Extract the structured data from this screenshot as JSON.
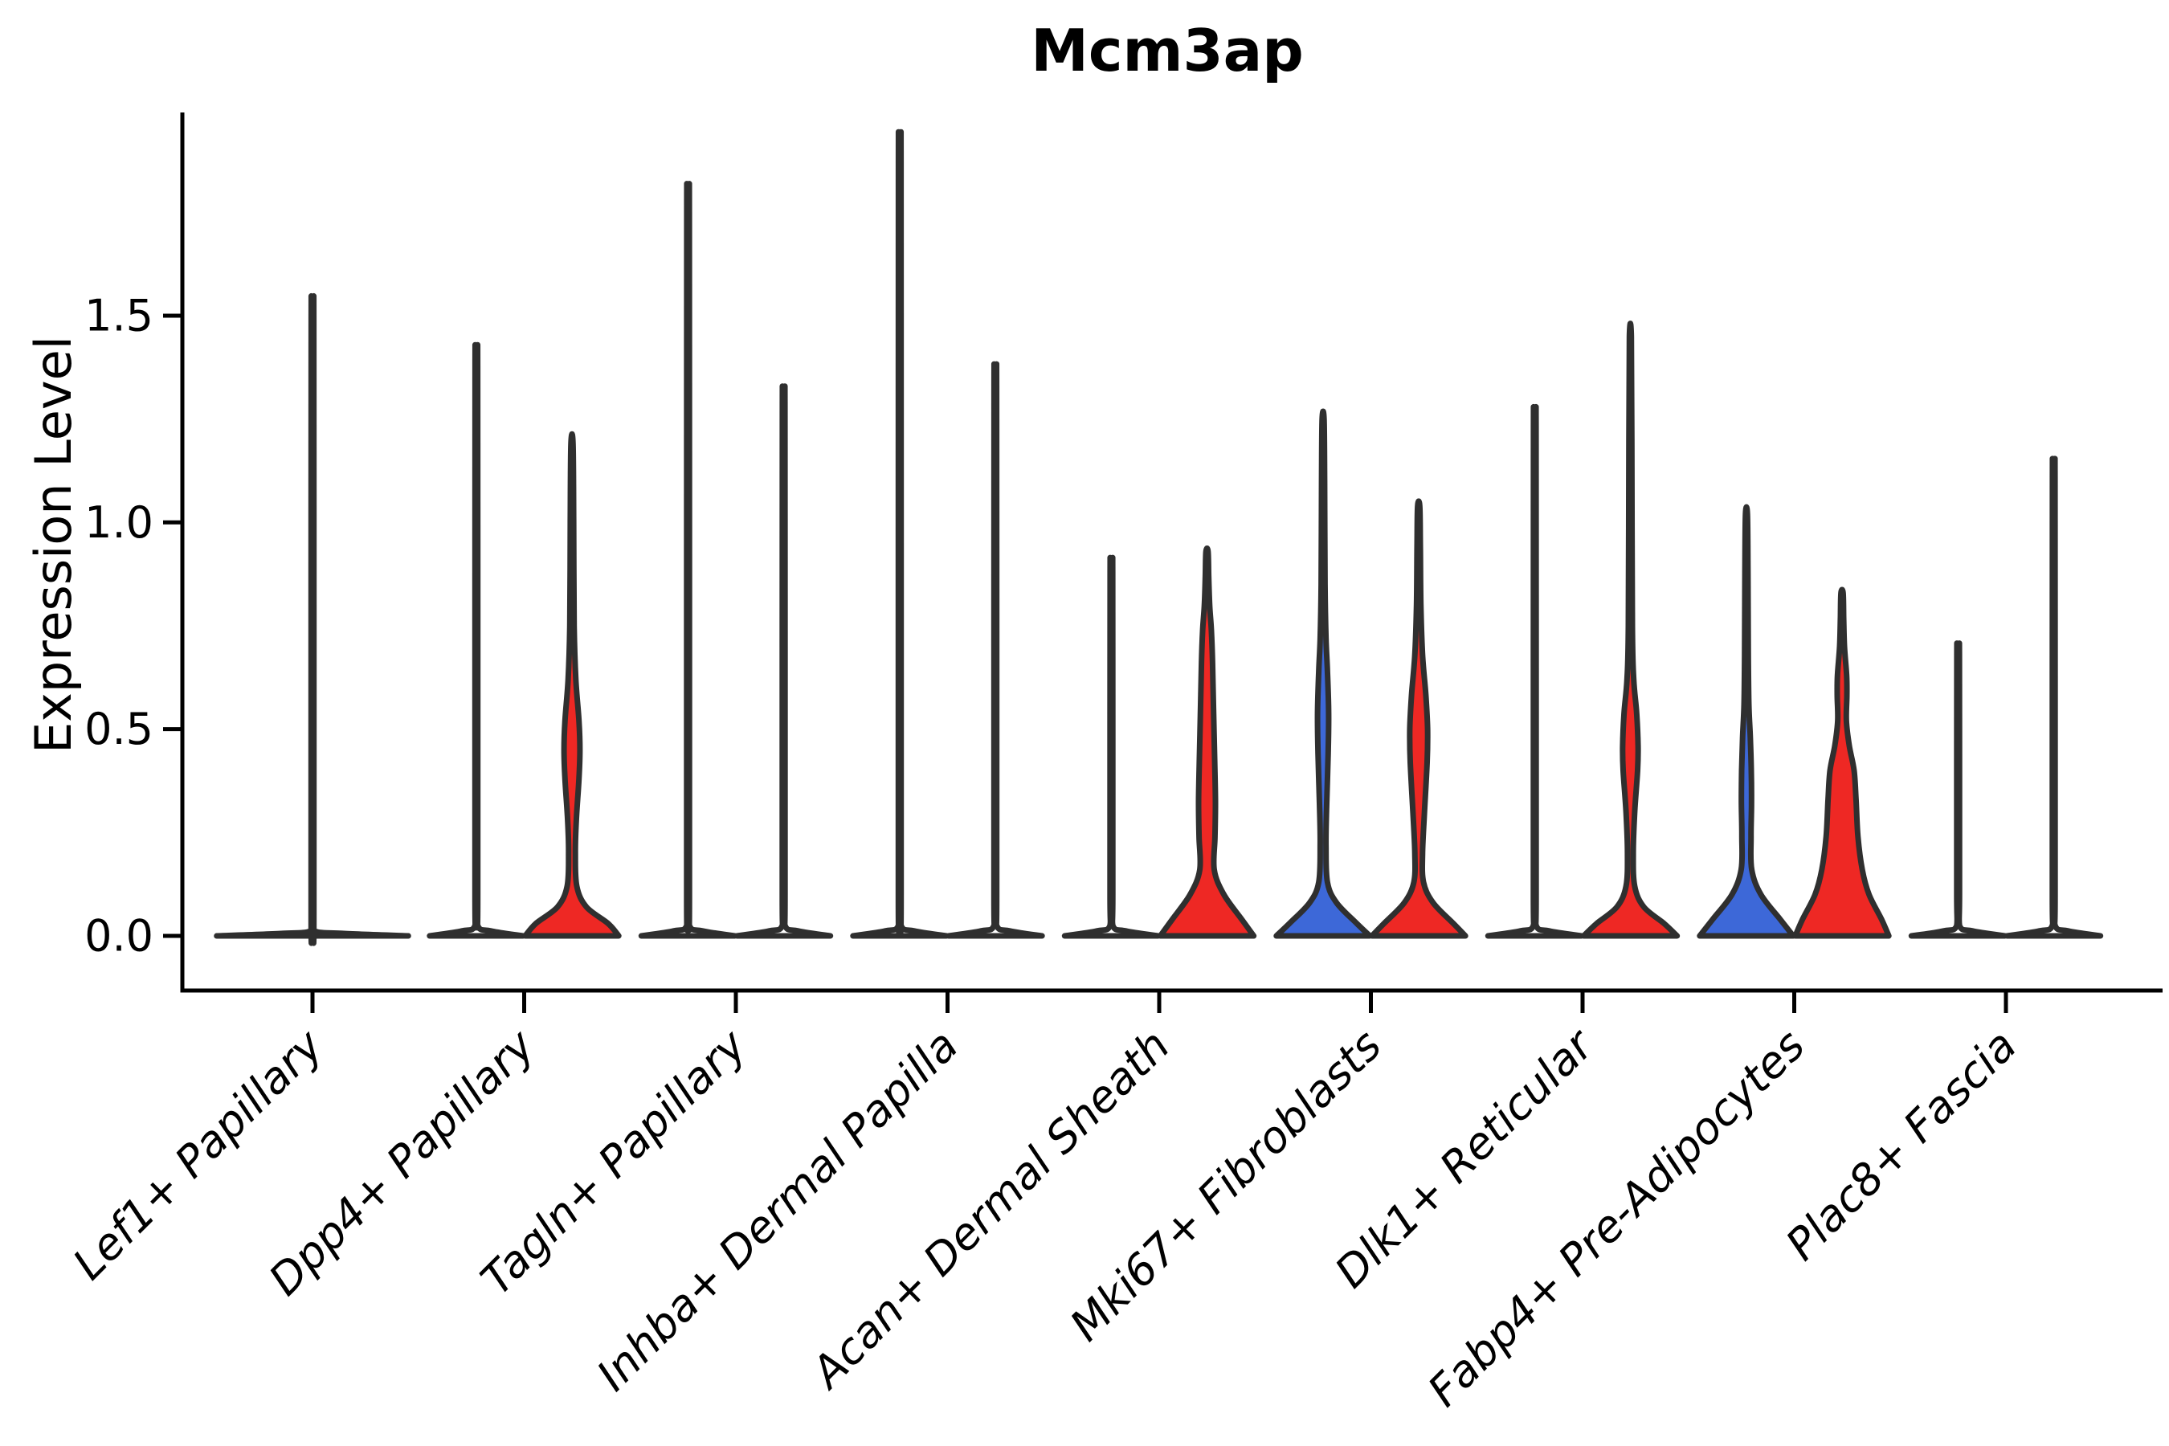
{
  "title": "Mcm3ap",
  "ylabel": "Expression Level",
  "chart_data": {
    "type": "violin",
    "title": "Mcm3ap",
    "xlabel": "",
    "ylabel": "Expression Level",
    "ylim": [
      -0.13,
      1.99
    ],
    "y_ticks": [
      0.0,
      0.5,
      1.0,
      1.5
    ],
    "y_tick_labels": [
      "0.0",
      "0.5",
      "1.0",
      "1.5"
    ],
    "grid": false,
    "legend": "none",
    "colors": {
      "fill_blue": "#3D68D8",
      "fill_red": "#EE2824",
      "fill_none": "#FFFFFF",
      "outline": "#2F2F2F",
      "axis": "#000000"
    },
    "categories": [
      "Lef1+ Papillary",
      "Dpp4+ Papillary",
      "Tagln+ Papillary",
      "Inhba+ Dermal Papilla",
      "Acan+ Dermal Sheath",
      "Mki67+ Fibroblasts",
      "Dlk1+ Reticular",
      "Fabp4+ Pre-Adipocytes",
      "Plac8+ Fascia"
    ],
    "groups": [
      {
        "category": "Lef1+ Papillary",
        "violins": [
          {
            "slot": "single",
            "fill": "none",
            "max_expression": 1.51,
            "width_scale": 2.05,
            "profile": [
              [
                0,
                0.97
              ],
              [
                0.006,
                0.3
              ],
              [
                0.013,
                0.014
              ],
              [
                0.05,
                0.014
              ],
              [
                0.8,
                0.014
              ],
              [
                1.49,
                0.013
              ],
              [
                1.51,
                0.01
              ]
            ]
          }
        ]
      },
      {
        "category": "Dpp4+ Papillary",
        "violins": [
          {
            "slot": "left",
            "fill": "none",
            "max_expression": 1.4,
            "width_scale": 1,
            "profile": [
              [
                0,
                0.97
              ],
              [
                0.012,
                0.3
              ],
              [
                0.025,
                0.028
              ],
              [
                0.1,
                0.028
              ],
              [
                0.8,
                0.028
              ],
              [
                1.38,
                0.026
              ],
              [
                1.4,
                0.02
              ]
            ]
          },
          {
            "slot": "right",
            "fill": "red",
            "max_expression": 1.19,
            "width_scale": 1,
            "profile": [
              [
                0,
                0.97
              ],
              [
                0.03,
                0.75
              ],
              [
                0.07,
                0.3
              ],
              [
                0.12,
                0.1
              ],
              [
                0.2,
                0.07
              ],
              [
                0.28,
                0.09
              ],
              [
                0.38,
                0.145
              ],
              [
                0.45,
                0.165
              ],
              [
                0.52,
                0.145
              ],
              [
                0.62,
                0.08
              ],
              [
                0.75,
                0.045
              ],
              [
                1.0,
                0.035
              ],
              [
                1.19,
                0.022
              ]
            ]
          }
        ]
      },
      {
        "category": "Tagln+ Papillary",
        "violins": [
          {
            "slot": "left",
            "fill": "none",
            "max_expression": 1.77,
            "width_scale": 1,
            "profile": [
              [
                0,
                0.97
              ],
              [
                0.012,
                0.3
              ],
              [
                0.025,
                0.028
              ],
              [
                0.1,
                0.028
              ],
              [
                0.9,
                0.028
              ],
              [
                1.75,
                0.026
              ],
              [
                1.77,
                0.02
              ]
            ]
          },
          {
            "slot": "right",
            "fill": "none",
            "max_expression": 1.3,
            "width_scale": 1,
            "profile": [
              [
                0,
                0.97
              ],
              [
                0.012,
                0.3
              ],
              [
                0.025,
                0.028
              ],
              [
                0.1,
                0.028
              ],
              [
                0.7,
                0.028
              ],
              [
                1.28,
                0.026
              ],
              [
                1.3,
                0.02
              ]
            ]
          }
        ]
      },
      {
        "category": "Inhba+ Dermal Papilla",
        "violins": [
          {
            "slot": "left",
            "fill": "none",
            "max_expression": 1.89,
            "width_scale": 1,
            "profile": [
              [
                0,
                0.97
              ],
              [
                0.012,
                0.3
              ],
              [
                0.025,
                0.028
              ],
              [
                0.1,
                0.028
              ],
              [
                0.95,
                0.028
              ],
              [
                1.87,
                0.026
              ],
              [
                1.89,
                0.02
              ]
            ]
          },
          {
            "slot": "right",
            "fill": "none",
            "max_expression": 1.35,
            "width_scale": 1,
            "profile": [
              [
                0,
                0.97
              ],
              [
                0.012,
                0.3
              ],
              [
                0.025,
                0.028
              ],
              [
                0.1,
                0.028
              ],
              [
                0.7,
                0.028
              ],
              [
                1.33,
                0.026
              ],
              [
                1.35,
                0.02
              ]
            ]
          }
        ]
      },
      {
        "category": "Acan+ Dermal Sheath",
        "violins": [
          {
            "slot": "left",
            "fill": "none",
            "max_expression": 0.9,
            "width_scale": 1,
            "profile": [
              [
                0,
                0.97
              ],
              [
                0.012,
                0.3
              ],
              [
                0.025,
                0.028
              ],
              [
                0.1,
                0.028
              ],
              [
                0.5,
                0.028
              ],
              [
                0.88,
                0.026
              ],
              [
                0.9,
                0.02
              ]
            ]
          },
          {
            "slot": "right",
            "fill": "red",
            "max_expression": 0.93,
            "width_scale": 1,
            "profile": [
              [
                0,
                0.97
              ],
              [
                0.04,
                0.72
              ],
              [
                0.1,
                0.35
              ],
              [
                0.16,
                0.15
              ],
              [
                0.24,
                0.165
              ],
              [
                0.32,
                0.175
              ],
              [
                0.42,
                0.16
              ],
              [
                0.55,
                0.135
              ],
              [
                0.66,
                0.115
              ],
              [
                0.74,
                0.09
              ],
              [
                0.8,
                0.055
              ],
              [
                0.87,
                0.035
              ],
              [
                0.93,
                0.022
              ]
            ]
          }
        ]
      },
      {
        "category": "Mki67+ Fibroblasts",
        "violins": [
          {
            "slot": "left",
            "fill": "blue",
            "max_expression": 1.25,
            "width_scale": 1,
            "profile": [
              [
                0,
                0.97
              ],
              [
                0.03,
                0.7
              ],
              [
                0.08,
                0.28
              ],
              [
                0.13,
                0.09
              ],
              [
                0.22,
                0.06
              ],
              [
                0.32,
                0.075
              ],
              [
                0.44,
                0.105
              ],
              [
                0.54,
                0.115
              ],
              [
                0.64,
                0.09
              ],
              [
                0.72,
                0.06
              ],
              [
                0.85,
                0.04
              ],
              [
                1.1,
                0.032
              ],
              [
                1.25,
                0.02
              ]
            ]
          },
          {
            "slot": "right",
            "fill": "red",
            "max_expression": 1.04,
            "width_scale": 1,
            "profile": [
              [
                0,
                0.97
              ],
              [
                0.03,
                0.72
              ],
              [
                0.08,
                0.3
              ],
              [
                0.13,
                0.1
              ],
              [
                0.2,
                0.08
              ],
              [
                0.3,
                0.12
              ],
              [
                0.42,
                0.175
              ],
              [
                0.5,
                0.185
              ],
              [
                0.58,
                0.15
              ],
              [
                0.68,
                0.08
              ],
              [
                0.8,
                0.045
              ],
              [
                0.95,
                0.034
              ],
              [
                1.04,
                0.022
              ]
            ]
          }
        ]
      },
      {
        "category": "Dlk1+ Reticular",
        "violins": [
          {
            "slot": "left",
            "fill": "none",
            "max_expression": 1.25,
            "width_scale": 1,
            "profile": [
              [
                0,
                0.97
              ],
              [
                0.012,
                0.3
              ],
              [
                0.025,
                0.028
              ],
              [
                0.1,
                0.028
              ],
              [
                0.65,
                0.028
              ],
              [
                1.23,
                0.026
              ],
              [
                1.25,
                0.02
              ]
            ]
          },
          {
            "slot": "right",
            "fill": "red",
            "max_expression": 1.45,
            "width_scale": 1,
            "profile": [
              [
                0,
                0.97
              ],
              [
                0.03,
                0.7
              ],
              [
                0.07,
                0.28
              ],
              [
                0.12,
                0.09
              ],
              [
                0.2,
                0.06
              ],
              [
                0.3,
                0.09
              ],
              [
                0.4,
                0.15
              ],
              [
                0.46,
                0.16
              ],
              [
                0.54,
                0.13
              ],
              [
                0.62,
                0.07
              ],
              [
                0.75,
                0.042
              ],
              [
                1.2,
                0.03
              ],
              [
                1.45,
                0.02
              ]
            ]
          }
        ]
      },
      {
        "category": "Fabp4+ Pre-Adipocytes",
        "violins": [
          {
            "slot": "left",
            "fill": "blue",
            "max_expression": 1.02,
            "width_scale": 1,
            "profile": [
              [
                0,
                0.97
              ],
              [
                0.04,
                0.7
              ],
              [
                0.1,
                0.3
              ],
              [
                0.16,
                0.11
              ],
              [
                0.24,
                0.095
              ],
              [
                0.32,
                0.105
              ],
              [
                0.4,
                0.1
              ],
              [
                0.48,
                0.08
              ],
              [
                0.56,
                0.05
              ],
              [
                0.68,
                0.038
              ],
              [
                0.88,
                0.032
              ],
              [
                1.02,
                0.02
              ]
            ]
          },
          {
            "slot": "right",
            "fill": "red",
            "max_expression": 0.83,
            "width_scale": 1,
            "profile": [
              [
                0,
                0.97
              ],
              [
                0.04,
                0.82
              ],
              [
                0.1,
                0.56
              ],
              [
                0.16,
                0.42
              ],
              [
                0.24,
                0.33
              ],
              [
                0.33,
                0.29
              ],
              [
                0.4,
                0.25
              ],
              [
                0.46,
                0.15
              ],
              [
                0.52,
                0.09
              ],
              [
                0.58,
                0.1
              ],
              [
                0.63,
                0.095
              ],
              [
                0.7,
                0.05
              ],
              [
                0.77,
                0.034
              ],
              [
                0.83,
                0.022
              ]
            ]
          }
        ]
      },
      {
        "category": "Plac8+ Fascia",
        "violins": [
          {
            "slot": "left",
            "fill": "none",
            "max_expression": 0.7,
            "width_scale": 1,
            "profile": [
              [
                0,
                0.97
              ],
              [
                0.012,
                0.3
              ],
              [
                0.025,
                0.028
              ],
              [
                0.1,
                0.028
              ],
              [
                0.4,
                0.028
              ],
              [
                0.68,
                0.026
              ],
              [
                0.7,
                0.02
              ]
            ]
          },
          {
            "slot": "right",
            "fill": "none",
            "max_expression": 1.13,
            "width_scale": 1,
            "profile": [
              [
                0,
                0.97
              ],
              [
                0.012,
                0.3
              ],
              [
                0.025,
                0.028
              ],
              [
                0.1,
                0.028
              ],
              [
                0.6,
                0.028
              ],
              [
                1.11,
                0.026
              ],
              [
                1.13,
                0.02
              ]
            ]
          }
        ]
      }
    ]
  }
}
